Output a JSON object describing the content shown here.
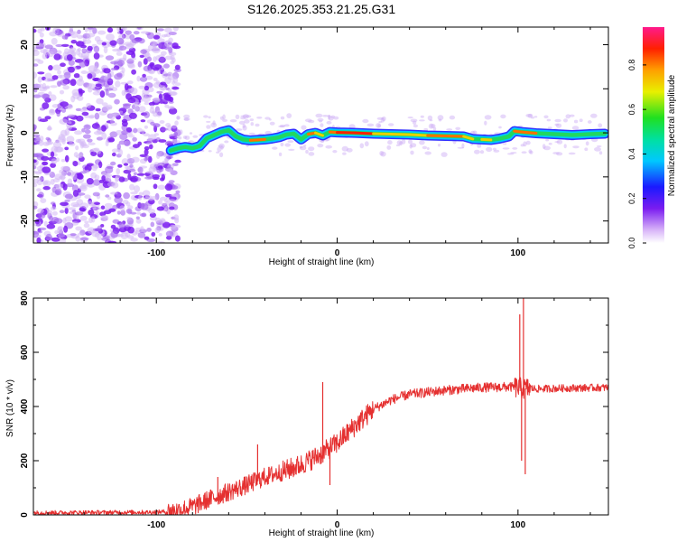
{
  "figure_title": "S126.2025.353.21.25.G31",
  "colors": {
    "snr_line": "#e53030",
    "noise": "#8a2be2",
    "axis": "#000000"
  },
  "chart_data": [
    {
      "type": "heatmap",
      "name": "spectrogram",
      "title": "S126.2025.353.21.25.G31",
      "xlabel": "Height of straight line (km)",
      "ylabel": "Frequency (Hz)",
      "xlim": [
        -168,
        150
      ],
      "ylim": [
        -25,
        24
      ],
      "xticks": [
        -100,
        0,
        100
      ],
      "xtick_labels": [
        "-100",
        "0",
        "100"
      ],
      "yticks": [
        -20,
        -10,
        0,
        10,
        20
      ],
      "ytick_labels": [
        "-20",
        "-10",
        "0",
        "10",
        "20"
      ],
      "colorbar_label": "Normalized spectral amplitude",
      "colorbar_ticks": [
        "0.0",
        "0.2",
        "0.4",
        "0.6",
        "0.8"
      ],
      "colorbar_values": [
        0.0,
        0.2,
        0.4,
        0.6,
        0.8
      ],
      "colorbar_range": [
        0,
        0.97
      ],
      "noise_region_x": [
        -168,
        -88
      ],
      "signal_track": {
        "x": [
          -92,
          -88,
          -84,
          -80,
          -76,
          -72,
          -68,
          -64,
          -60,
          -56,
          -52,
          -48,
          -44,
          -40,
          -36,
          -32,
          -28,
          -24,
          -20,
          -16,
          -12,
          -8,
          -4,
          0,
          10,
          20,
          30,
          40,
          50,
          60,
          70,
          75,
          80,
          85,
          90,
          95,
          98,
          102,
          110,
          120,
          130,
          140,
          148
        ],
        "freq": [
          -4.0,
          -3.5,
          -3.2,
          -3.5,
          -3.0,
          -1.2,
          -0.5,
          0.2,
          0.6,
          -0.8,
          -1.5,
          -1.7,
          -1.6,
          -1.5,
          -1.3,
          -1.0,
          -0.4,
          -0.2,
          -1.5,
          -0.3,
          0.0,
          -0.6,
          0.2,
          0.1,
          0.0,
          -0.2,
          -0.3,
          -0.4,
          -0.6,
          -0.7,
          -0.8,
          -1.4,
          -1.5,
          -1.6,
          -1.3,
          -0.8,
          0.4,
          0.2,
          -0.1,
          -0.3,
          -0.5,
          -0.3,
          -0.2
        ],
        "amp": [
          0.35,
          0.5,
          0.6,
          0.55,
          0.5,
          0.45,
          0.5,
          0.55,
          0.5,
          0.6,
          0.7,
          0.85,
          0.9,
          0.85,
          0.7,
          0.75,
          0.8,
          0.7,
          0.55,
          0.8,
          0.9,
          0.75,
          0.8,
          0.95,
          0.96,
          0.85,
          0.8,
          0.8,
          0.85,
          0.88,
          0.85,
          0.8,
          0.75,
          0.85,
          0.7,
          0.6,
          0.85,
          0.9,
          0.8,
          0.75,
          0.65,
          0.55,
          0.5
        ]
      }
    },
    {
      "type": "line",
      "name": "snr",
      "xlabel": "Height of straight line (km)",
      "ylabel": "SNR (10 * v/v)",
      "xlim": [
        -168,
        150
      ],
      "ylim": [
        0,
        800
      ],
      "xticks": [
        -100,
        0,
        100
      ],
      "xtick_labels": [
        "-100",
        "0",
        "100"
      ],
      "yticks": [
        0,
        200,
        400,
        600,
        800
      ],
      "ytick_labels": [
        "0",
        "200",
        "400",
        "600",
        "800"
      ],
      "trend": {
        "x": [
          -168,
          -100,
          -90,
          -80,
          -70,
          -60,
          -50,
          -40,
          -30,
          -20,
          -10,
          0,
          10,
          20,
          30,
          40,
          60,
          80,
          95,
          100,
          103,
          106,
          110,
          130,
          150
        ],
        "y": [
          8,
          10,
          15,
          30,
          60,
          85,
          110,
          140,
          160,
          185,
          220,
          265,
          330,
          390,
          425,
          445,
          460,
          470,
          472,
          470,
          465,
          468,
          465,
          468,
          470
        ]
      },
      "spikes": [
        {
          "x": -66,
          "y": 140
        },
        {
          "x": -44,
          "y": 260
        },
        {
          "x": -8,
          "y": 490
        },
        {
          "x": -4,
          "y": 110
        },
        {
          "x": 101,
          "y": 740
        },
        {
          "x": 102,
          "y": 200
        },
        {
          "x": 103,
          "y": 810
        },
        {
          "x": 104,
          "y": 150
        }
      ]
    }
  ]
}
